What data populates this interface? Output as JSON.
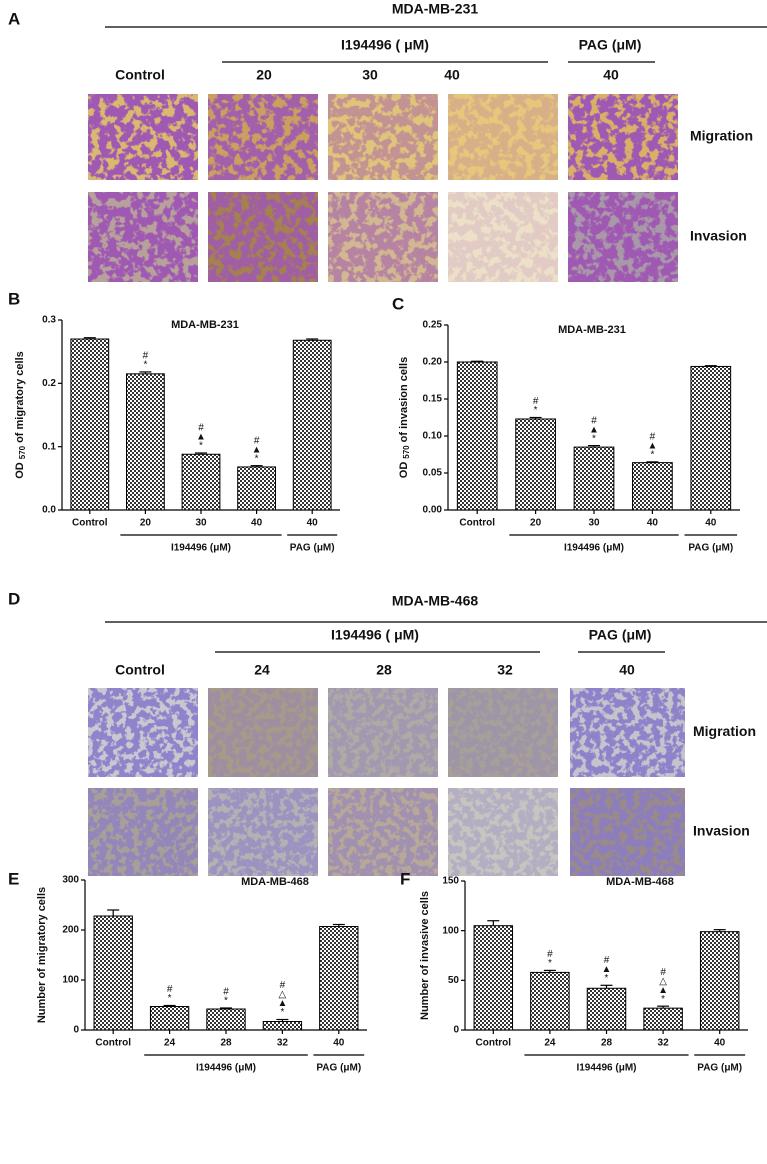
{
  "figure": {
    "panel_a": {
      "letter": "A",
      "cell_line": "MDA-MB-231",
      "group_1": "I194496 ( μM)",
      "group_2": "PAG (μM)",
      "columns": [
        "Control",
        "20",
        "30",
        "40",
        "40"
      ],
      "rows": [
        "Migration",
        "Invasion"
      ]
    },
    "panel_d": {
      "letter": "D",
      "cell_line": "MDA-MB-468",
      "group_1": "I194496 ( μM)",
      "group_2": "PAG (μM)",
      "columns": [
        "Control",
        "24",
        "28",
        "32",
        "40"
      ],
      "rows": [
        "Migration",
        "Invasion"
      ]
    }
  },
  "chart_data": [
    {
      "type": "bar",
      "panel": "B",
      "title": "MDA-MB-231",
      "ylabel": {
        "main": "OD",
        "sub": "570",
        "rest": "of  migratory cells"
      },
      "categories": [
        "Control",
        "20",
        "30",
        "40",
        "40"
      ],
      "values": [
        0.27,
        0.215,
        0.088,
        0.068,
        0.268
      ],
      "errors": [
        0.002,
        0.003,
        0.002,
        0.002,
        0.002
      ],
      "annotations": [
        [],
        [
          "#",
          "*"
        ],
        [
          "#",
          "▲",
          "*"
        ],
        [
          "#",
          "▲",
          "*"
        ],
        []
      ],
      "groups": [
        "I194496 (μM)",
        "PAG (μM)"
      ],
      "ylim": [
        0,
        0.3
      ],
      "yticks": [
        {
          "value": 0,
          "label": "0.0"
        },
        0.1,
        0.2,
        0.3
      ]
    },
    {
      "type": "bar",
      "panel": "C",
      "title": "MDA-MB-231",
      "ylabel": {
        "main": "OD",
        "sub": "570",
        "rest": "of  invasion cells"
      },
      "categories": [
        "Control",
        "20",
        "30",
        "40",
        "40"
      ],
      "values": [
        0.2,
        0.123,
        0.085,
        0.064,
        0.194
      ],
      "errors": [
        0.001,
        0.002,
        0.002,
        0.001,
        0.001
      ],
      "annotations": [
        [],
        [
          "#",
          "*"
        ],
        [
          "#",
          "▲",
          "*"
        ],
        [
          "#",
          "▲",
          "*"
        ],
        []
      ],
      "groups": [
        "I194496 (μM)",
        "PAG (μM)"
      ],
      "ylim": [
        0,
        0.25
      ],
      "yticks": [
        {
          "value": 0,
          "label": "0.00"
        },
        0.05,
        {
          "value": 0.1,
          "label": "0.10"
        },
        0.15,
        {
          "value": 0.2,
          "label": "0.20"
        },
        0.25
      ]
    },
    {
      "type": "bar",
      "panel": "E",
      "title": "MDA-MB-468",
      "ylabel": "Number of migratory cells",
      "categories": [
        "Control",
        "24",
        "28",
        "32",
        "40"
      ],
      "values": [
        228,
        47,
        42,
        17,
        207
      ],
      "errors": [
        12,
        2,
        2,
        4,
        4
      ],
      "annotations": [
        [],
        [
          "#",
          "*"
        ],
        [
          "#",
          "*"
        ],
        [
          "#",
          "△",
          "▲",
          "*"
        ],
        []
      ],
      "groups": [
        "I194496 (μM)",
        "PAG (μM)"
      ],
      "ylim": [
        0,
        300
      ],
      "yticks": [
        0,
        100,
        200,
        300
      ]
    },
    {
      "type": "bar",
      "panel": "F",
      "title": "MDA-MB-468",
      "ylabel": "Number of invasive cells",
      "categories": [
        "Control",
        "24",
        "28",
        "32",
        "40"
      ],
      "values": [
        105,
        58,
        42,
        22,
        99
      ],
      "errors": [
        5,
        2,
        3,
        2,
        2
      ],
      "annotations": [
        [],
        [
          "#",
          "*"
        ],
        [
          "#",
          "▲",
          "*"
        ],
        [
          "#",
          "△",
          "▲",
          "*"
        ],
        []
      ],
      "groups": [
        "I194496 (μM)",
        "PAG (μM)"
      ],
      "ylim": [
        0,
        150
      ],
      "yticks": [
        0,
        50,
        100,
        150
      ]
    }
  ]
}
